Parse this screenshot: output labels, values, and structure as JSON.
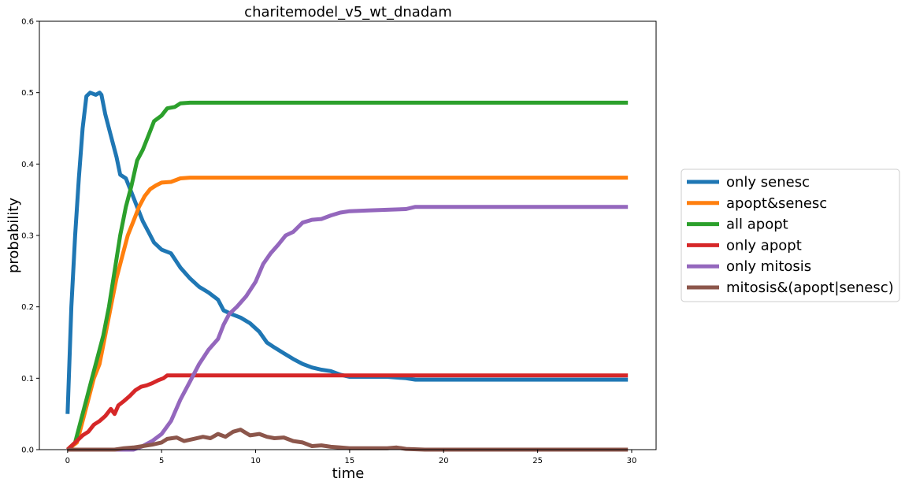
{
  "chart_data": {
    "type": "line",
    "title": "charitemodel_v5_wt_dnadam",
    "xlabel": "time",
    "ylabel": "probability",
    "xlim": [
      -1.5,
      31.3
    ],
    "ylim": [
      0,
      0.6
    ],
    "xticks": [
      0,
      5,
      10,
      15,
      20,
      25,
      30
    ],
    "xtick_labels": [
      "0",
      "5",
      "10",
      "15",
      "20",
      "25",
      "30"
    ],
    "yticks": [
      0,
      0.1,
      0.2,
      0.3,
      0.4,
      0.5,
      0.6
    ],
    "ytick_labels": [
      "0.0",
      "0.1",
      "0.2",
      "0.3",
      "0.4",
      "0.5",
      "0.6"
    ],
    "grid": false,
    "legend": "right-outside",
    "series": [
      {
        "name": "only senesc",
        "color": "#1f77b4",
        "points": [
          [
            0,
            0.05
          ],
          [
            0.2,
            0.2
          ],
          [
            0.4,
            0.3
          ],
          [
            0.6,
            0.38
          ],
          [
            0.8,
            0.45
          ],
          [
            1.0,
            0.495
          ],
          [
            1.2,
            0.5
          ],
          [
            1.5,
            0.497
          ],
          [
            1.7,
            0.5
          ],
          [
            1.8,
            0.497
          ],
          [
            2.0,
            0.47
          ],
          [
            2.3,
            0.44
          ],
          [
            2.6,
            0.41
          ],
          [
            2.8,
            0.385
          ],
          [
            3.1,
            0.38
          ],
          [
            3.4,
            0.36
          ],
          [
            3.7,
            0.34
          ],
          [
            4.0,
            0.32
          ],
          [
            4.3,
            0.305
          ],
          [
            4.6,
            0.29
          ],
          [
            5.0,
            0.28
          ],
          [
            5.5,
            0.275
          ],
          [
            6.0,
            0.255
          ],
          [
            6.5,
            0.24
          ],
          [
            7.0,
            0.228
          ],
          [
            7.5,
            0.22
          ],
          [
            8.0,
            0.21
          ],
          [
            8.3,
            0.195
          ],
          [
            8.7,
            0.19
          ],
          [
            9.2,
            0.185
          ],
          [
            9.7,
            0.177
          ],
          [
            10.2,
            0.165
          ],
          [
            10.6,
            0.15
          ],
          [
            11.0,
            0.143
          ],
          [
            11.5,
            0.135
          ],
          [
            12.0,
            0.127
          ],
          [
            12.5,
            0.12
          ],
          [
            13.0,
            0.115
          ],
          [
            13.5,
            0.112
          ],
          [
            14.0,
            0.11
          ],
          [
            14.5,
            0.105
          ],
          [
            15.0,
            0.102
          ],
          [
            16.0,
            0.102
          ],
          [
            17.0,
            0.102
          ],
          [
            18.0,
            0.1
          ],
          [
            18.5,
            0.098
          ],
          [
            20.0,
            0.098
          ],
          [
            25.0,
            0.098
          ],
          [
            29.8,
            0.098
          ]
        ]
      },
      {
        "name": "apopt&senesc",
        "color": "#ff7f0e",
        "points": [
          [
            0,
            0
          ],
          [
            0.5,
            0.01
          ],
          [
            0.8,
            0.04
          ],
          [
            1.1,
            0.07
          ],
          [
            1.4,
            0.1
          ],
          [
            1.7,
            0.12
          ],
          [
            2.0,
            0.16
          ],
          [
            2.3,
            0.2
          ],
          [
            2.6,
            0.24
          ],
          [
            2.9,
            0.27
          ],
          [
            3.2,
            0.3
          ],
          [
            3.5,
            0.32
          ],
          [
            3.8,
            0.34
          ],
          [
            4.1,
            0.355
          ],
          [
            4.4,
            0.365
          ],
          [
            4.7,
            0.37
          ],
          [
            5.0,
            0.374
          ],
          [
            5.5,
            0.375
          ],
          [
            6.0,
            0.38
          ],
          [
            6.5,
            0.381
          ],
          [
            10.0,
            0.381
          ],
          [
            20.0,
            0.381
          ],
          [
            29.8,
            0.381
          ]
        ]
      },
      {
        "name": "all apopt",
        "color": "#2ca02c",
        "points": [
          [
            0,
            0
          ],
          [
            0.4,
            0.01
          ],
          [
            0.7,
            0.04
          ],
          [
            1.0,
            0.07
          ],
          [
            1.3,
            0.1
          ],
          [
            1.6,
            0.13
          ],
          [
            1.9,
            0.16
          ],
          [
            2.2,
            0.2
          ],
          [
            2.5,
            0.25
          ],
          [
            2.8,
            0.3
          ],
          [
            3.1,
            0.34
          ],
          [
            3.4,
            0.37
          ],
          [
            3.7,
            0.405
          ],
          [
            4.0,
            0.42
          ],
          [
            4.3,
            0.44
          ],
          [
            4.6,
            0.46
          ],
          [
            5.0,
            0.468
          ],
          [
            5.3,
            0.478
          ],
          [
            5.7,
            0.48
          ],
          [
            6.0,
            0.485
          ],
          [
            6.5,
            0.486
          ],
          [
            10.0,
            0.486
          ],
          [
            20.0,
            0.486
          ],
          [
            29.8,
            0.486
          ]
        ]
      },
      {
        "name": "only apopt",
        "color": "#d62728",
        "points": [
          [
            0,
            0
          ],
          [
            0.4,
            0.01
          ],
          [
            0.8,
            0.02
          ],
          [
            1.1,
            0.025
          ],
          [
            1.4,
            0.035
          ],
          [
            1.7,
            0.04
          ],
          [
            2.0,
            0.047
          ],
          [
            2.3,
            0.057
          ],
          [
            2.5,
            0.05
          ],
          [
            2.7,
            0.062
          ],
          [
            3.0,
            0.068
          ],
          [
            3.3,
            0.075
          ],
          [
            3.6,
            0.083
          ],
          [
            3.9,
            0.088
          ],
          [
            4.2,
            0.09
          ],
          [
            4.5,
            0.093
          ],
          [
            4.8,
            0.097
          ],
          [
            5.1,
            0.1
          ],
          [
            5.3,
            0.104
          ],
          [
            6.0,
            0.104
          ],
          [
            10.0,
            0.104
          ],
          [
            20.0,
            0.104
          ],
          [
            29.8,
            0.104
          ]
        ]
      },
      {
        "name": "only mitosis",
        "color": "#9467bd",
        "points": [
          [
            0,
            0
          ],
          [
            3.5,
            0
          ],
          [
            4.0,
            0.005
          ],
          [
            4.5,
            0.012
          ],
          [
            5.0,
            0.022
          ],
          [
            5.5,
            0.04
          ],
          [
            6.0,
            0.07
          ],
          [
            6.5,
            0.095
          ],
          [
            7.0,
            0.12
          ],
          [
            7.5,
            0.14
          ],
          [
            8.0,
            0.155
          ],
          [
            8.3,
            0.175
          ],
          [
            8.6,
            0.19
          ],
          [
            9.0,
            0.2
          ],
          [
            9.5,
            0.215
          ],
          [
            10.0,
            0.235
          ],
          [
            10.4,
            0.26
          ],
          [
            10.8,
            0.275
          ],
          [
            11.2,
            0.287
          ],
          [
            11.6,
            0.3
          ],
          [
            12.0,
            0.305
          ],
          [
            12.5,
            0.318
          ],
          [
            13.0,
            0.322
          ],
          [
            13.5,
            0.323
          ],
          [
            14.0,
            0.328
          ],
          [
            14.5,
            0.332
          ],
          [
            15.0,
            0.334
          ],
          [
            16.0,
            0.335
          ],
          [
            17.0,
            0.336
          ],
          [
            18.0,
            0.337
          ],
          [
            18.5,
            0.34
          ],
          [
            20.0,
            0.34
          ],
          [
            25.0,
            0.34
          ],
          [
            29.8,
            0.34
          ]
        ]
      },
      {
        "name": "mitosis&(apopt|senesc)",
        "color": "#8c564b",
        "points": [
          [
            0,
            0
          ],
          [
            2.5,
            0
          ],
          [
            3.0,
            0.002
          ],
          [
            3.5,
            0.003
          ],
          [
            4.0,
            0.005
          ],
          [
            4.5,
            0.007
          ],
          [
            5.0,
            0.01
          ],
          [
            5.3,
            0.015
          ],
          [
            5.8,
            0.017
          ],
          [
            6.2,
            0.012
          ],
          [
            6.7,
            0.015
          ],
          [
            7.2,
            0.018
          ],
          [
            7.6,
            0.016
          ],
          [
            8.0,
            0.022
          ],
          [
            8.4,
            0.018
          ],
          [
            8.8,
            0.025
          ],
          [
            9.2,
            0.028
          ],
          [
            9.7,
            0.02
          ],
          [
            10.2,
            0.022
          ],
          [
            10.6,
            0.018
          ],
          [
            11.0,
            0.016
          ],
          [
            11.5,
            0.017
          ],
          [
            12.0,
            0.012
          ],
          [
            12.5,
            0.01
          ],
          [
            13.0,
            0.005
          ],
          [
            13.5,
            0.006
          ],
          [
            14.0,
            0.004
          ],
          [
            14.5,
            0.003
          ],
          [
            15.0,
            0.002
          ],
          [
            16.0,
            0.002
          ],
          [
            17.0,
            0.002
          ],
          [
            17.5,
            0.003
          ],
          [
            18.0,
            0.001
          ],
          [
            19.0,
            0
          ],
          [
            25.0,
            0
          ],
          [
            29.8,
            0
          ]
        ]
      }
    ]
  }
}
